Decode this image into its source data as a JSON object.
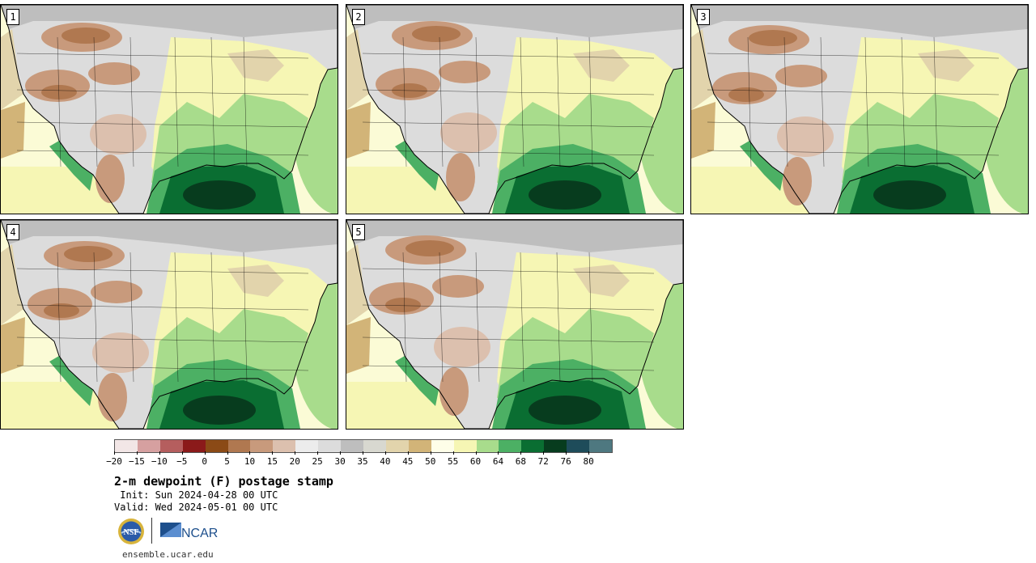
{
  "panels": [
    {
      "label": "1"
    },
    {
      "label": "2"
    },
    {
      "label": "3"
    },
    {
      "label": "4"
    },
    {
      "label": "5"
    }
  ],
  "colorbar": {
    "colors": [
      "#f2e6e6",
      "#d6a0a0",
      "#b55e5e",
      "#8b1a1a",
      "#8b4a16",
      "#b07850",
      "#c89a7c",
      "#dcc0ae",
      "#ececec",
      "#dcdcdc",
      "#bebebe",
      "#d8d8d0",
      "#e2d4ac",
      "#d2b478",
      "#fefee8",
      "#f6f6b4",
      "#a8dc8c",
      "#4cb064",
      "#0a6e32",
      "#073c1e",
      "#1e4c5a",
      "#4e7880"
    ],
    "ticks": [
      "−20",
      "−15",
      "−10",
      "−5",
      "0",
      "5",
      "10",
      "15",
      "20",
      "25",
      "30",
      "35",
      "40",
      "45",
      "50",
      "55",
      "60",
      "64",
      "68",
      "72",
      "76",
      "80"
    ]
  },
  "title": "2-m dewpoint (F) postage stamp",
  "init": " Init: Sun 2024-04-28 00 UTC",
  "valid": "Valid: Wed 2024-05-01 00 UTC",
  "logos": {
    "nsf": "NSF",
    "ncar": "NCAR"
  },
  "url": "ensemble.ucar.edu"
}
